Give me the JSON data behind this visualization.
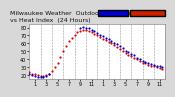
{
  "title_left": "Milwaukee Weather  Outdoor Temperature",
  "title_right": "vs Heat Index  (24 Hours)",
  "background_color": "#d8d8d8",
  "plot_bg": "#ffffff",
  "legend_blue_color": "#0000cc",
  "legend_red_color": "#cc2200",
  "ylim": [
    15,
    85
  ],
  "xlim": [
    0,
    24
  ],
  "y_ticks": [
    20,
    30,
    40,
    50,
    60,
    70,
    80
  ],
  "vgrid_x": [
    2,
    4,
    6,
    8,
    10,
    12,
    14,
    16,
    18,
    20,
    22
  ],
  "grid_color": "#999999",
  "dot_size": 2.5,
  "temp_color": "#dd0000",
  "heat_color": "#0000cc",
  "temp_x": [
    0.0,
    0.5,
    1.0,
    1.5,
    2.0,
    2.5,
    3.0,
    3.5,
    4.0,
    4.5,
    5.0,
    5.5,
    6.0,
    6.5,
    7.0,
    7.5,
    8.0,
    8.5,
    9.0,
    9.5,
    10.0,
    10.5,
    11.0,
    11.5,
    12.0,
    12.5,
    13.0,
    13.5,
    14.0,
    14.5,
    15.0,
    15.5,
    16.0,
    16.5,
    17.0,
    17.5,
    18.0,
    18.5,
    19.0,
    19.5,
    20.0,
    20.5,
    21.0,
    21.5,
    22.0,
    22.5,
    23.0,
    23.5
  ],
  "temp_y": [
    24,
    22,
    21,
    20,
    19,
    19,
    20,
    22,
    25,
    30,
    36,
    43,
    50,
    57,
    63,
    67,
    71,
    74,
    76,
    77,
    77,
    76,
    74,
    72,
    70,
    68,
    66,
    64,
    62,
    60,
    58,
    56,
    53,
    51,
    48,
    46,
    44,
    42,
    40,
    38,
    36,
    35,
    33,
    32,
    31,
    30,
    29,
    28
  ],
  "heat_x": [
    0.0,
    0.5,
    1.0,
    1.5,
    2.0,
    2.5,
    3.0,
    3.5,
    9.0,
    9.5,
    10.0,
    10.5,
    11.0,
    11.5,
    12.0,
    12.5,
    13.0,
    13.5,
    14.0,
    14.5,
    15.0,
    15.5,
    16.0,
    16.5,
    17.0,
    17.5,
    18.0,
    18.5,
    19.0,
    19.5,
    20.0,
    20.5,
    21.0,
    21.5,
    22.0,
    22.5,
    23.0,
    23.5
  ],
  "heat_y": [
    22,
    20,
    19,
    18,
    18,
    18,
    19,
    21,
    80,
    81,
    80,
    79,
    77,
    75,
    73,
    71,
    69,
    67,
    65,
    63,
    61,
    59,
    57,
    54,
    51,
    49,
    47,
    45,
    42,
    40,
    38,
    37,
    35,
    34,
    33,
    32,
    31,
    30
  ],
  "x_positions": [
    1,
    3,
    5,
    7,
    9,
    11,
    13,
    15,
    17,
    19,
    21,
    23
  ],
  "x_labels": [
    "1",
    "3",
    "5",
    "7",
    "9",
    "11",
    "1",
    "3",
    "5",
    "7",
    "9",
    "11"
  ],
  "title_fontsize": 4.5,
  "tick_fontsize": 3.5
}
